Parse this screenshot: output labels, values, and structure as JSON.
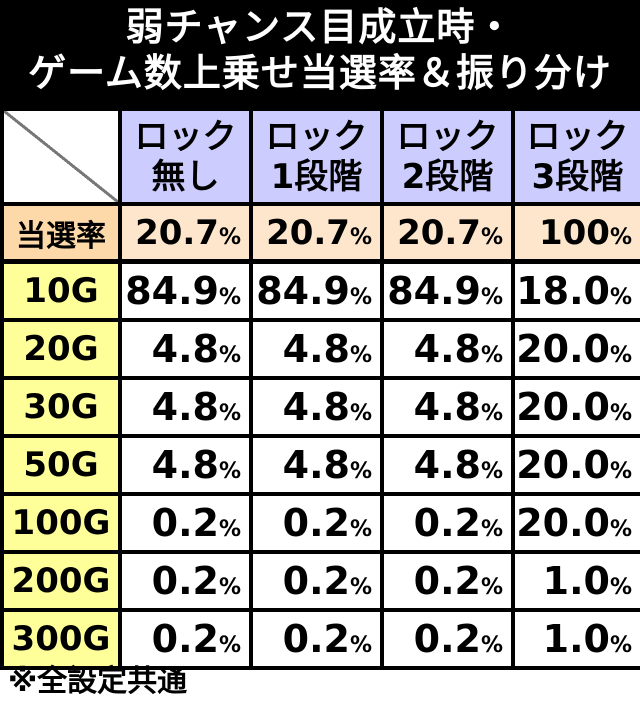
{
  "title": {
    "line1": "弱チャンス目成立時・",
    "line2": "ゲーム数上乗せ当選率＆振り分け"
  },
  "columns": [
    {
      "line1": "ロック",
      "line2": "無し"
    },
    {
      "line1": "ロック",
      "line2": "1段階"
    },
    {
      "line1": "ロック",
      "line2": "2段階"
    },
    {
      "line1": "ロック",
      "line2": "3段階"
    }
  ],
  "rate": {
    "label": "当選率",
    "values": [
      "20.7",
      "20.7",
      "20.7",
      "100"
    ],
    "unit": "%"
  },
  "rows": [
    {
      "label": "10G",
      "values": [
        "84.9",
        "84.9",
        "84.9",
        "18.0"
      ]
    },
    {
      "label": "20G",
      "values": [
        "4.8",
        "4.8",
        "4.8",
        "20.0"
      ]
    },
    {
      "label": "30G",
      "values": [
        "4.8",
        "4.8",
        "4.8",
        "20.0"
      ]
    },
    {
      "label": "50G",
      "values": [
        "4.8",
        "4.8",
        "4.8",
        "20.0"
      ]
    },
    {
      "label": "100G",
      "values": [
        "0.2",
        "0.2",
        "0.2",
        "20.0"
      ]
    },
    {
      "label": "200G",
      "values": [
        "0.2",
        "0.2",
        "0.2",
        "1.0"
      ]
    },
    {
      "label": "300G",
      "values": [
        "0.2",
        "0.2",
        "0.2",
        "1.0"
      ]
    }
  ],
  "note": "※全設定共通",
  "colors": {
    "title_bg": "#000000",
    "column_header_bg": "#ccccff",
    "rate_label_bg": "#fdd8a8",
    "rate_value_bg": "#fde6cc",
    "row_label_bg": "#ffff99",
    "border": "#000000"
  }
}
